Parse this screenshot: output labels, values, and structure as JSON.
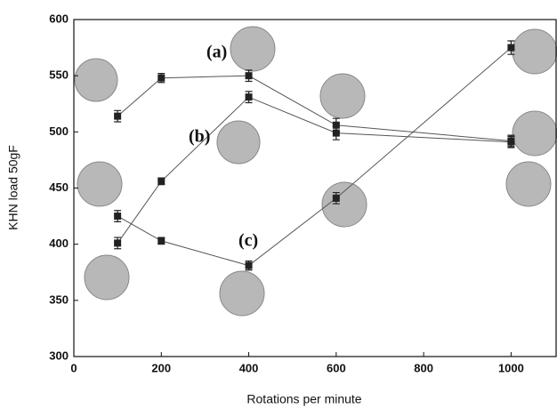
{
  "chart_data": {
    "type": "line",
    "x_label": "Rotations per minute",
    "y_label": "KHN load 50gF",
    "x": [
      100,
      200,
      400,
      600,
      1000
    ],
    "series": [
      {
        "name": "(a)",
        "color": "#222222",
        "values": [
          514,
          548,
          550,
          506,
          492
        ],
        "errors": [
          5,
          4,
          5,
          6,
          5
        ]
      },
      {
        "name": "(b)",
        "color": "#222222",
        "values": [
          401,
          456,
          531,
          499,
          491
        ],
        "errors": [
          5,
          3,
          5,
          6,
          5
        ]
      },
      {
        "name": "(c)",
        "color": "#222222",
        "values": [
          425,
          403,
          381,
          441,
          575
        ],
        "errors": [
          5,
          3,
          4,
          5,
          6
        ]
      }
    ],
    "xlim": [
      0,
      1105
    ],
    "xticks": [
      0,
      200,
      400,
      600,
      800,
      1000
    ],
    "ylim": [
      300,
      600
    ],
    "yticks": [
      300,
      350,
      400,
      450,
      500,
      550,
      600
    ],
    "grid": false
  }
}
